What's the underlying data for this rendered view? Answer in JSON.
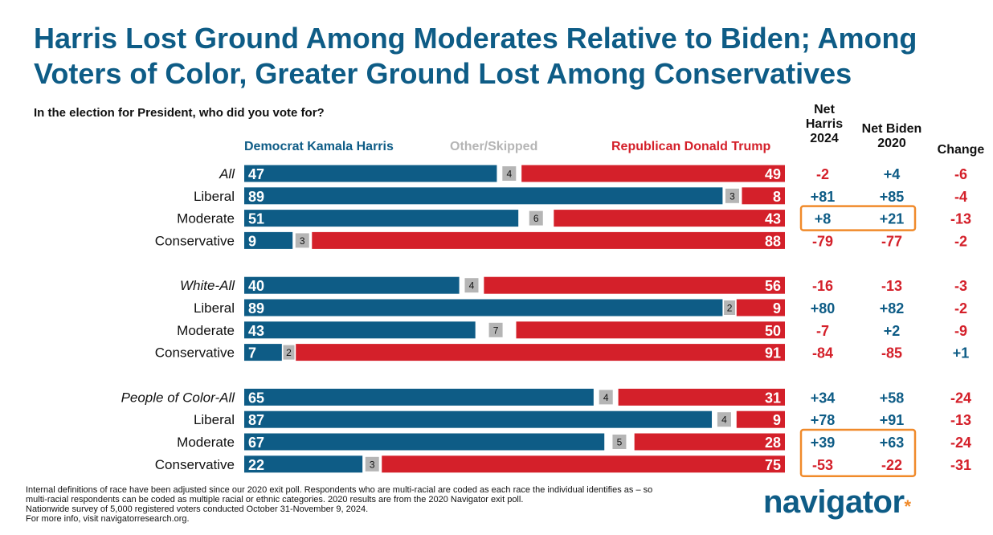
{
  "title": "Harris Lost Ground Among Moderates Relative to Biden; Among Voters of Color, Greater Ground Lost Among Conservatives",
  "question": "In the election for President, who did you vote for?",
  "colors": {
    "harris": "#0e5c86",
    "other": "#b5b5b5",
    "trump": "#d4202a",
    "title": "#0e5c86",
    "highlight_box": "#f08a2a"
  },
  "legend": {
    "harris": "Democrat Kamala Harris",
    "other": "Other/Skipped",
    "trump": "Republican Donald Trump"
  },
  "columns": {
    "net_harris_line1": "Net",
    "net_harris_line2": "Harris",
    "net_harris_line3": "2024",
    "net_biden_line1": "Net Biden",
    "net_biden_line2": "2020",
    "change": "Change"
  },
  "chart_data": {
    "type": "bar",
    "stacked": true,
    "orientation": "horizontal",
    "xlim": [
      0,
      100
    ],
    "series_names": [
      "Democrat Kamala Harris",
      "Other/Skipped",
      "Republican Donald Trump"
    ],
    "groups": [
      {
        "rows": [
          {
            "label": "All",
            "italic": true,
            "harris": 47,
            "other": 4,
            "trump": 49,
            "net_harris": "-2",
            "net_biden": "+4",
            "change": "-6"
          },
          {
            "label": "Liberal",
            "italic": false,
            "harris": 89,
            "other": 3,
            "trump": 8,
            "net_harris": "+81",
            "net_biden": "+85",
            "change": "-4"
          },
          {
            "label": "Moderate",
            "italic": false,
            "harris": 51,
            "other": 6,
            "trump": 43,
            "net_harris": "+8",
            "net_biden": "+21",
            "change": "-13",
            "highlight": true
          },
          {
            "label": "Conservative",
            "italic": false,
            "harris": 9,
            "other": 3,
            "trump": 88,
            "net_harris": "-79",
            "net_biden": "-77",
            "change": "-2"
          }
        ]
      },
      {
        "rows": [
          {
            "label": "White-All",
            "italic": true,
            "harris": 40,
            "other": 4,
            "trump": 56,
            "net_harris": "-16",
            "net_biden": "-13",
            "change": "-3"
          },
          {
            "label": "Liberal",
            "italic": false,
            "harris": 89,
            "other": 2,
            "trump": 9,
            "net_harris": "+80",
            "net_biden": "+82",
            "change": "-2"
          },
          {
            "label": "Moderate",
            "italic": false,
            "harris": 43,
            "other": 7,
            "trump": 50,
            "net_harris": "-7",
            "net_biden": "+2",
            "change": "-9"
          },
          {
            "label": "Conservative",
            "italic": false,
            "harris": 7,
            "other": 2,
            "trump": 91,
            "net_harris": "-84",
            "net_biden": "-85",
            "change": "+1"
          }
        ]
      },
      {
        "rows": [
          {
            "label": "People of Color-All",
            "italic": true,
            "harris": 65,
            "other": 4,
            "trump": 31,
            "net_harris": "+34",
            "net_biden": "+58",
            "change": "-24"
          },
          {
            "label": "Liberal",
            "italic": false,
            "harris": 87,
            "other": 4,
            "trump": 9,
            "net_harris": "+78",
            "net_biden": "+91",
            "change": "-13"
          },
          {
            "label": "Moderate",
            "italic": false,
            "harris": 67,
            "other": 5,
            "trump": 28,
            "net_harris": "+39",
            "net_biden": "+63",
            "change": "-24",
            "highlight": true
          },
          {
            "label": "Conservative",
            "italic": false,
            "harris": 22,
            "other": 3,
            "trump": 75,
            "net_harris": "-53",
            "net_biden": "-22",
            "change": "-31",
            "highlight": true
          }
        ]
      }
    ]
  },
  "footnote": {
    "line1": "Internal definitions of race have been adjusted since our 2020 exit poll. Respondents who are multi-racial are coded as each race the individual identifies as – so",
    "line2": "multi-racial respondents can be coded as multiple racial or ethnic categories. 2020 results are from the 2020 Navigator exit poll.",
    "line3": "Nationwide survey of 5,000 registered voters conducted October 31-November 9, 2024.",
    "line4": "For more info, visit navigatorresearch.org."
  },
  "logo": {
    "text": "navigator",
    "mark": "*"
  }
}
